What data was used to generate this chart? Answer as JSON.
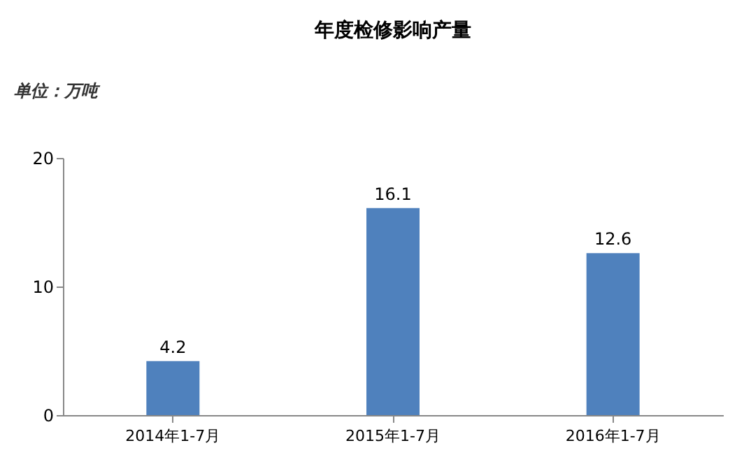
{
  "chart_data": {
    "type": "bar",
    "title": "年度检修影响产量",
    "annotations": [
      "单位：万吨"
    ],
    "categories": [
      "2014年1-7月",
      "2015年1-7月",
      "2016年1-7月"
    ],
    "values": [
      4.2,
      16.1,
      12.6
    ],
    "color": "#4f81bd",
    "ylim": [
      0,
      20
    ],
    "yticks": [
      0,
      10,
      20
    ],
    "grid": false,
    "data_labels": true
  }
}
